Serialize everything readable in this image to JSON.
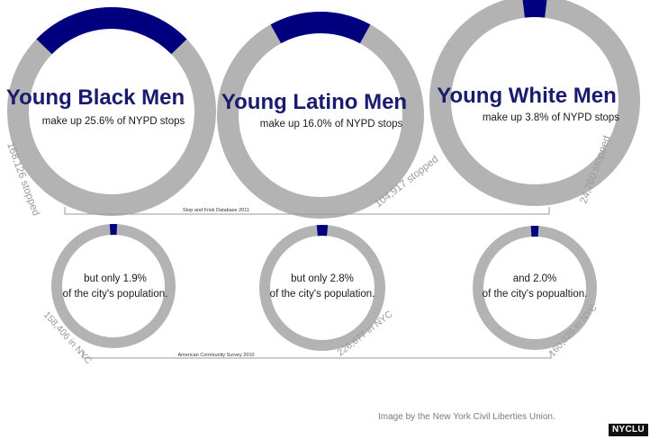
{
  "colors": {
    "highlight": "#00007e",
    "ring": "#b3b3b3",
    "title": "#1a1a6e",
    "text": "#1a1a1a",
    "annotation": "#9a9a9a",
    "bracket": "#999999"
  },
  "chart_data": [
    {
      "type": "pie",
      "group": "stops",
      "title": "Young Black Men",
      "subtitle": "make up 25.6% of NYPD stops",
      "value": 25.6,
      "unit": "%",
      "count_label": "168,126 stopped"
    },
    {
      "type": "pie",
      "group": "stops",
      "title": "Young Latino Men",
      "subtitle": "make up 16.0% of NYPD stops",
      "value": 16.0,
      "unit": "%",
      "count_label": "104,917 stopped"
    },
    {
      "type": "pie",
      "group": "stops",
      "title": "Young White Men",
      "subtitle": "make up 3.8% of NYPD stops",
      "value": 3.8,
      "unit": "%",
      "count_label": "24,760 stopped"
    },
    {
      "type": "pie",
      "group": "population",
      "text_line1": "but only 1.9%",
      "text_line2": "of the city's population.",
      "value": 1.9,
      "unit": "%",
      "count_label": "158,406 in NYC"
    },
    {
      "type": "pie",
      "group": "population",
      "text_line1": "but only 2.8%",
      "text_line2": "of the city's population.",
      "value": 2.8,
      "unit": "%",
      "count_label": "226,677 in NYC"
    },
    {
      "type": "pie",
      "group": "population",
      "text_line1": "and 2.0%",
      "text_line2": "of the city's popualtion.",
      "value": 2.0,
      "unit": "%",
      "count_label": "160,826 in NYC"
    }
  ],
  "sources": {
    "stops": "Stop and Frisk Database 2011",
    "population": "American Community Survey 2010"
  },
  "credit": "Image by the New York Civil Liberties Union.",
  "logo": "NYCLU"
}
